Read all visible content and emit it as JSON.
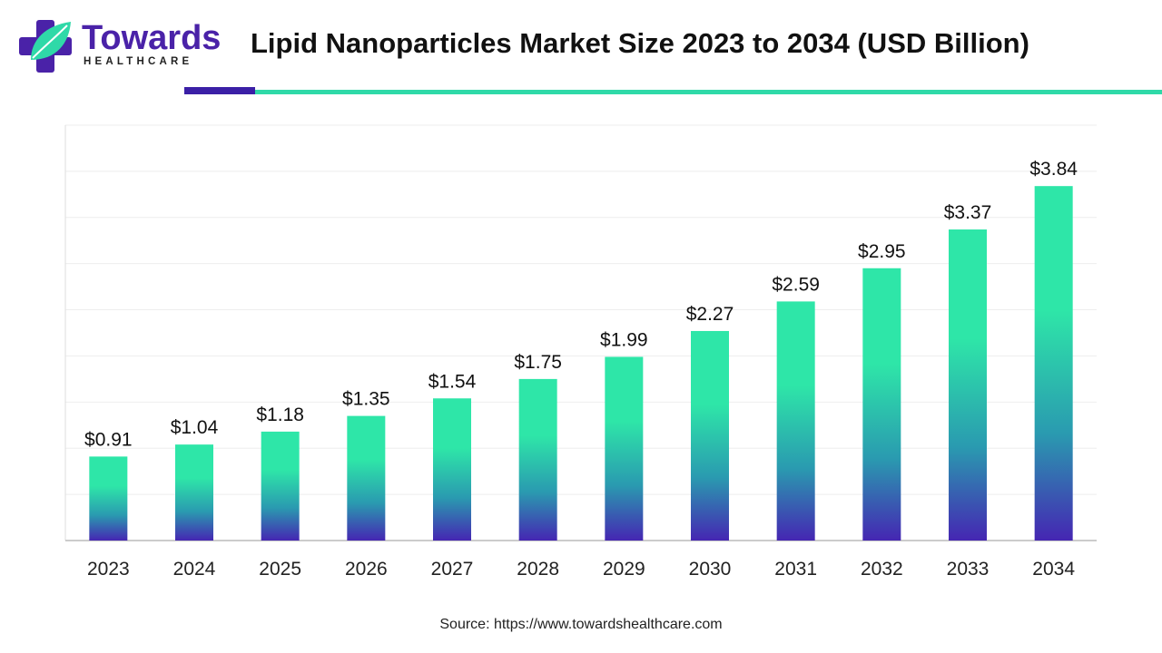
{
  "brand": {
    "name": "Towards",
    "tagline": "HEALTHCARE",
    "colors": {
      "purple": "#4a22a8",
      "teal": "#2fd9a8"
    },
    "icon": "cross-leaf-logo-icon"
  },
  "header": {
    "title": "Lipid Nanoparticles Market Size 2023 to 2034 (USD Billion)"
  },
  "chart_data": {
    "type": "bar",
    "categories": [
      "2023",
      "2024",
      "2025",
      "2026",
      "2027",
      "2028",
      "2029",
      "2030",
      "2031",
      "2032",
      "2033",
      "2034"
    ],
    "values": [
      0.91,
      1.04,
      1.18,
      1.35,
      1.54,
      1.75,
      1.99,
      2.27,
      2.59,
      2.95,
      3.37,
      3.84
    ],
    "value_labels": [
      "$0.91",
      "$1.04",
      "$1.18",
      "$1.35",
      "$1.54",
      "$1.75",
      "$1.99",
      "$2.27",
      "$2.59",
      "$2.95",
      "$3.37",
      "$3.84"
    ],
    "title": "Lipid Nanoparticles Market Size 2023 to 2034 (USD Billion)",
    "xlabel": "",
    "ylabel": "",
    "ylim": [
      0,
      4.5
    ],
    "grid": true,
    "legend": "none",
    "bar_gradient": {
      "top": "#2ee6a8",
      "middle": "#2a9ab0",
      "bottom": "#4526b2"
    }
  },
  "footer": {
    "source": "Source: https://www.towardshealthcare.com"
  }
}
